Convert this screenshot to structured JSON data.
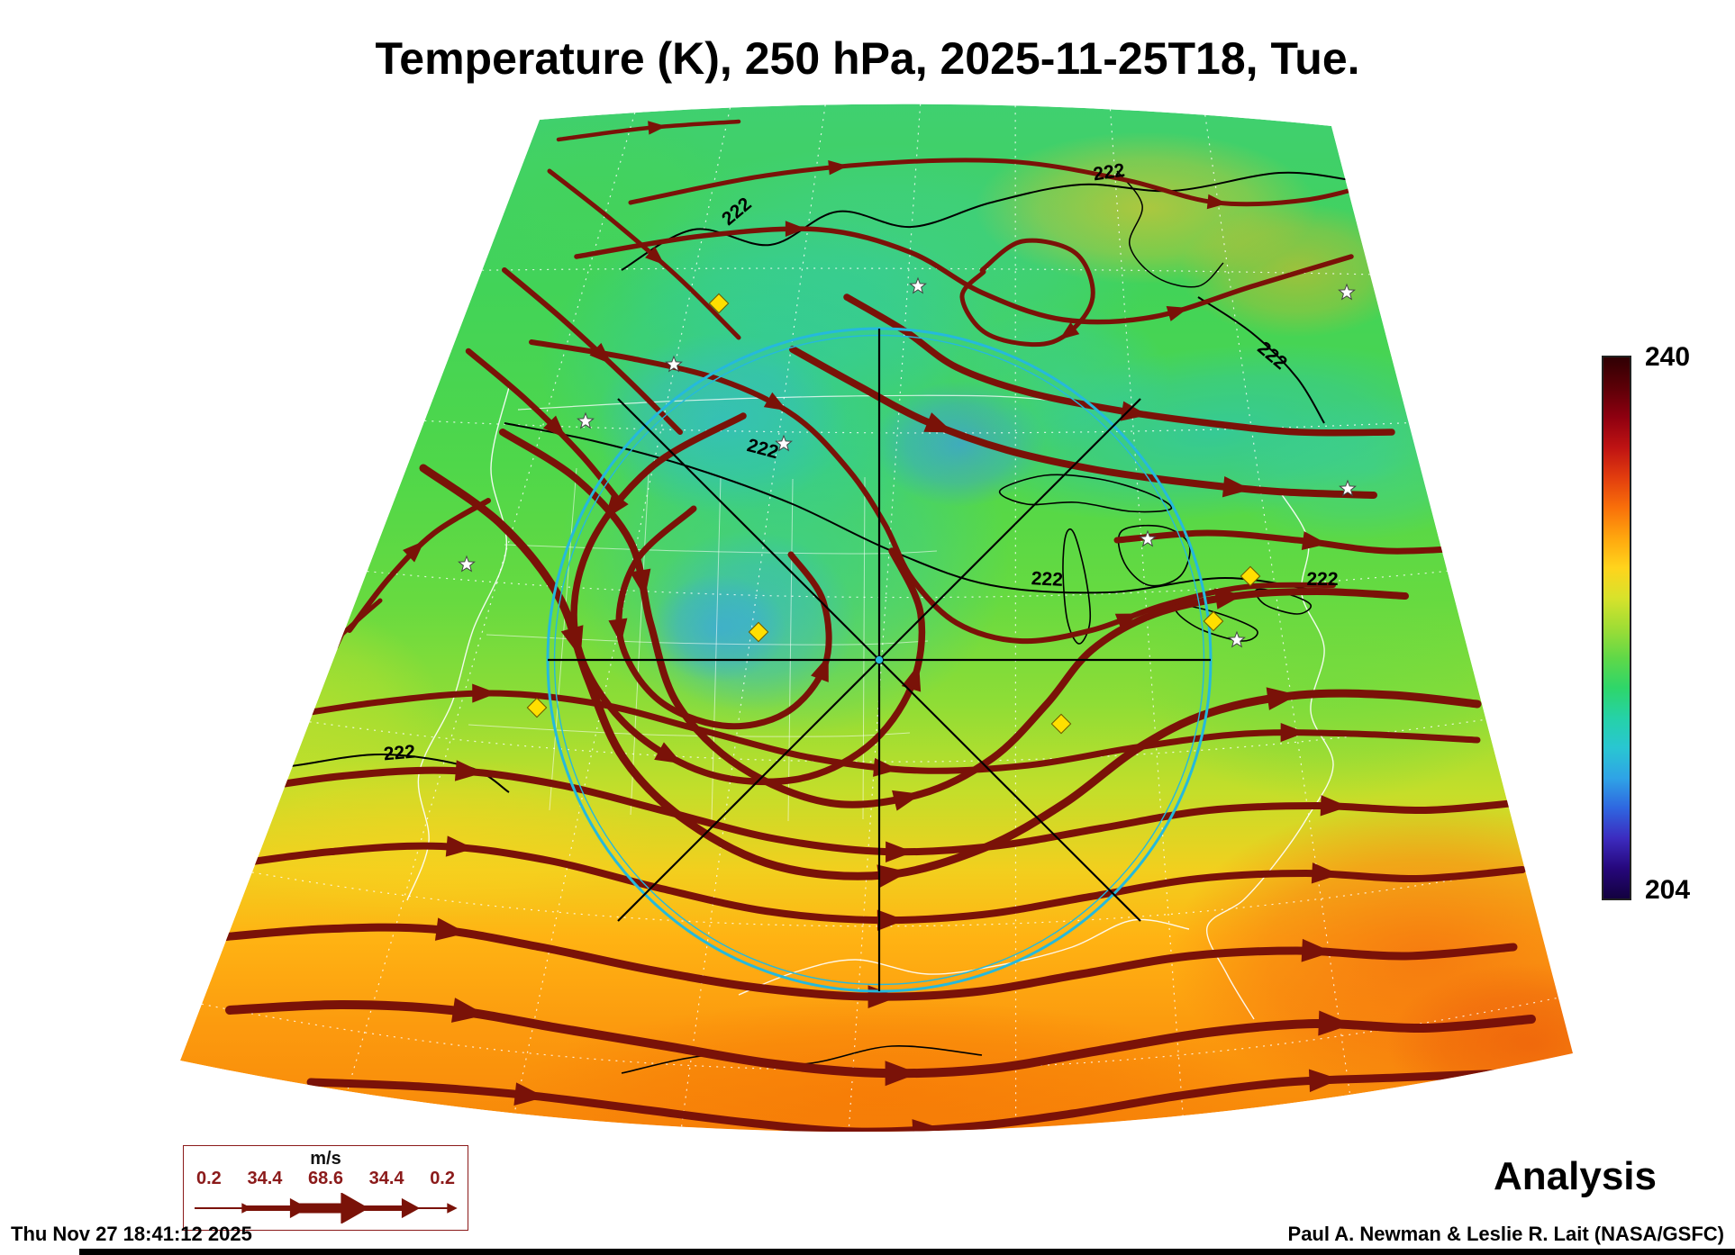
{
  "title": "Temperature (K), 250 hPa, 2025-11-25T18, Tue.",
  "mode_label": "Analysis",
  "colorbar": {
    "max_label": "240",
    "min_label": "204"
  },
  "contour_label": "222",
  "wind_legend": {
    "unit": "m/s",
    "values": [
      "0.2",
      "34.4",
      "68.6",
      "34.4",
      "0.2"
    ]
  },
  "footer": {
    "timestamp": "Thu Nov 27 18:41:12 2025",
    "credit": "Paul A. Newman & Leslie R. Lait (NASA/GSFC)"
  },
  "colors": {
    "streamline": "#7a1208",
    "contour": "#000000",
    "range_circle": "#25b9dc",
    "station_marker": "#ffdf00",
    "graticule": "#ffffff",
    "colorbar_stops": [
      "#300003",
      "#5c0007",
      "#8f0010",
      "#bf1313",
      "#e23d0e",
      "#f9700a",
      "#ffa60e",
      "#ffd41c",
      "#d8e22b",
      "#9fdd35",
      "#5fd848",
      "#2ed66a",
      "#25d2a8",
      "#29c6d2",
      "#2fa3e6",
      "#2f66e0",
      "#3c2bbf",
      "#26077c",
      "#13013f"
    ]
  },
  "chart_data": {
    "type": "heatmap",
    "variable": "Temperature",
    "units": "K",
    "level": "250 hPa",
    "valid_time": "2025-11-25T18",
    "valid_day": "Tue.",
    "product": "Analysis",
    "colorbar_range": [
      204,
      240
    ],
    "contour_levels_shown": [
      222
    ],
    "wind_legend_speeds_ms": [
      0.2,
      34.4,
      68.6,
      34.4,
      0.2
    ],
    "region": "North America shown in a fan-shaped conic map projection",
    "overlays": [
      "dark-red wind streamlines with arrowheads",
      "black 222 K temperature contours",
      "cyan range circle with black radial crosshair lines",
      "yellow diamond station markers",
      "white star markers",
      "white dotted graticule and white geography/state lines"
    ],
    "generated": "Thu Nov 27 18:41:12 2025",
    "credit": "Paul A. Newman & Leslie R. Lait (NASA/GSFC)"
  }
}
